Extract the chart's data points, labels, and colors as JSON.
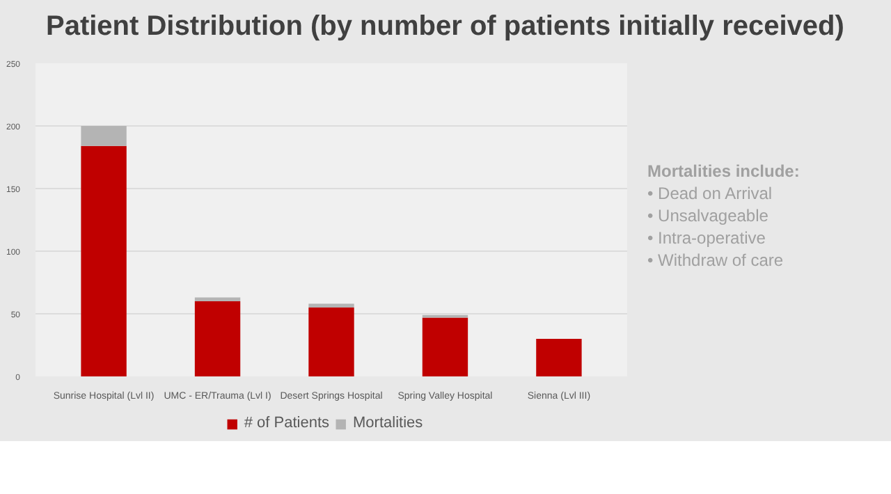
{
  "chart_data": {
    "type": "bar",
    "stacked": true,
    "title": "Patient Distribution (by number of patients initially received)",
    "categories": [
      "Sunrise Hospital (Lvl II)",
      "UMC - ER/Trauma (Lvl I)",
      "Desert Springs Hospital",
      "Spring Valley Hospital",
      "Sienna (Lvl III)"
    ],
    "series": [
      {
        "name": "# of Patients",
        "color": "#c00000",
        "values": [
          184,
          60,
          55,
          47,
          30
        ]
      },
      {
        "name": "Mortalities",
        "color": "#b4b4b4",
        "values": [
          16,
          3,
          3,
          2,
          0
        ]
      }
    ],
    "ylim": [
      0,
      250
    ],
    "yticks": [
      0,
      50,
      100,
      150,
      200,
      250
    ],
    "grid": "y",
    "legend": "bottom",
    "annotations": [
      "Mortalities include:",
      "•  Dead on Arrival",
      "•  Unsalvageable",
      "•  Intra-operative",
      "•  Withdraw of care"
    ]
  }
}
